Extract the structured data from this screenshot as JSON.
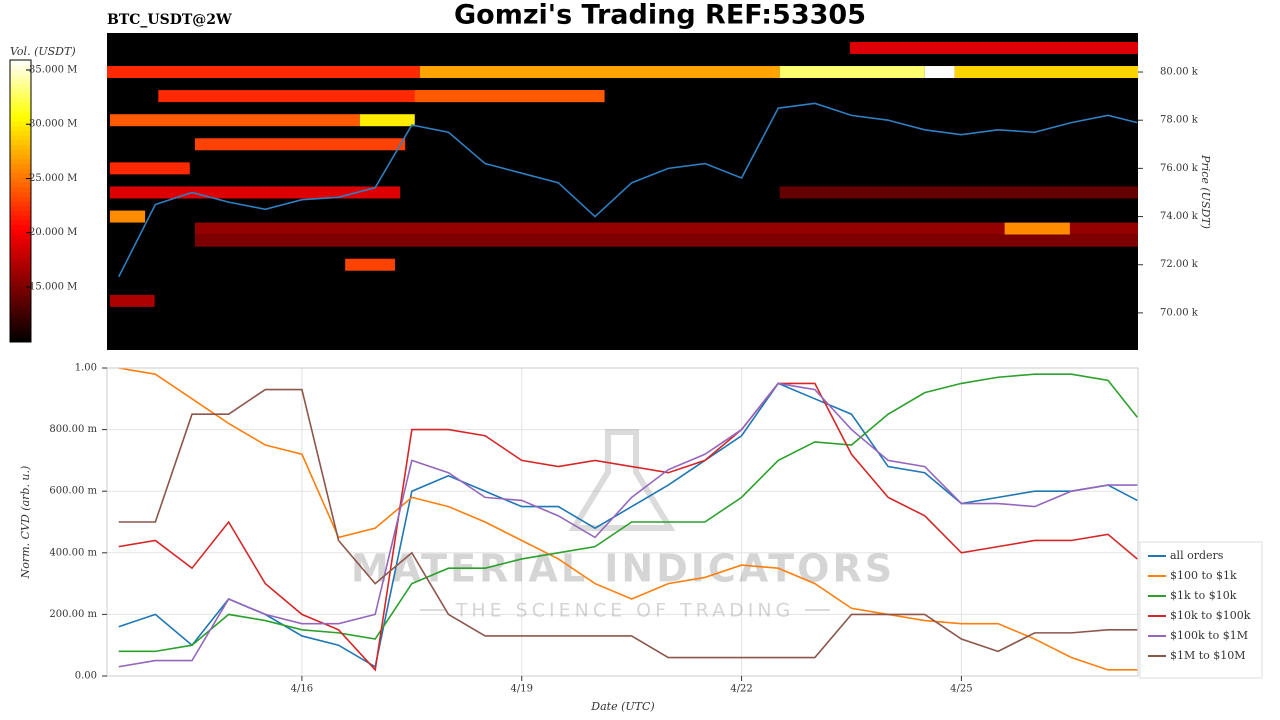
{
  "title": "Gomzi's Trading REF:53305",
  "watermark": {
    "name": "MATERIAL INDICATORS",
    "tagline": "THE SCIENCE OF TRADING"
  },
  "chart_data": [
    {
      "type": "heatmap",
      "label": "BTC_USDT@2W",
      "ylabel": "Price (USDT)",
      "xlim": [
        13.34,
        27.41
      ],
      "ylim": [
        68460,
        81620
      ],
      "yticks": [
        {
          "value": 70000,
          "label": "70.00 k"
        },
        {
          "value": 72000,
          "label": "72.00 k"
        },
        {
          "value": 74000,
          "label": "74.00 k"
        },
        {
          "value": 76000,
          "label": "76.00 k"
        },
        {
          "value": 78000,
          "label": "78.00 k"
        },
        {
          "value": 80000,
          "label": "80.00 k"
        }
      ],
      "clabel": "Vol. (USDT)",
      "clim": [
        9930000,
        35920000
      ],
      "cticks": [
        {
          "value": 15000000,
          "label": "15.000 M"
        },
        {
          "value": 20000000,
          "label": "20.000 M"
        },
        {
          "value": 25000000,
          "label": "25.000 M"
        },
        {
          "value": 30000000,
          "label": "30.000 M"
        },
        {
          "value": 35000000,
          "label": "35.000 M"
        }
      ],
      "blocks": [
        {
          "x": [
            13.34,
            17.61
          ],
          "price": 80000,
          "volume": 22000000
        },
        {
          "x": [
            17.61,
            22.52
          ],
          "price": 80000,
          "volume": 27000000
        },
        {
          "x": [
            22.52,
            24.5
          ],
          "price": 80000,
          "volume": 33000000
        },
        {
          "x": [
            24.5,
            24.91
          ],
          "price": 80000,
          "volume": 35900000
        },
        {
          "x": [
            24.91,
            27.41
          ],
          "price": 80000,
          "volume": 29000000
        },
        {
          "x": [
            23.48,
            27.41
          ],
          "price": 81000,
          "volume": 19000000
        },
        {
          "x": [
            14.04,
            20.13
          ],
          "price": 79000,
          "volume": 22000000
        },
        {
          "x": [
            17.54,
            20.13
          ],
          "price": 79000,
          "volume": 24000000
        },
        {
          "x": [
            13.38,
            16.79
          ],
          "price": 78000,
          "volume": 24000000
        },
        {
          "x": [
            16.79,
            17.54
          ],
          "price": 78000,
          "volume": 30000000
        },
        {
          "x": [
            14.54,
            17.41
          ],
          "price": 77000,
          "volume": 23000000
        },
        {
          "x": [
            13.38,
            14.47
          ],
          "price": 76000,
          "volume": 22000000
        },
        {
          "x": [
            13.38,
            17.34
          ],
          "price": 75000,
          "volume": 19000000
        },
        {
          "x": [
            22.52,
            27.41
          ],
          "price": 75000,
          "volume": 14000000
        },
        {
          "x": [
            13.38,
            13.86
          ],
          "price": 74000,
          "volume": 26000000
        },
        {
          "x": [
            14.54,
            27.41
          ],
          "price": 73500,
          "volume": 16000000
        },
        {
          "x": [
            25.59,
            26.48
          ],
          "price": 73500,
          "volume": 26000000
        },
        {
          "x": [
            14.54,
            27.41
          ],
          "price": 73000,
          "volume": 15000000
        },
        {
          "x": [
            16.59,
            17.27
          ],
          "price": 72000,
          "volume": 23000000
        },
        {
          "x": [
            13.38,
            13.99
          ],
          "price": 70500,
          "volume": 17000000
        }
      ],
      "x": [
        13.5,
        14,
        14.5,
        15,
        15.5,
        16,
        16.5,
        17,
        17.5,
        18,
        18.5,
        19,
        19.5,
        20,
        20.5,
        21,
        21.5,
        22,
        22.5,
        23,
        23.5,
        24,
        24.5,
        25,
        25.5,
        26,
        26.5,
        27,
        27.4
      ],
      "series": [
        {
          "color": "#2f7fc1",
          "values": [
            71500,
            74500,
            75000,
            74600,
            74300,
            74700,
            74800,
            75200,
            77800,
            77500,
            76200,
            75800,
            75400,
            74000,
            75400,
            76000,
            76200,
            75600,
            78500,
            78700,
            78200,
            78000,
            77600,
            77400,
            77600,
            77500,
            77900,
            78200,
            77900
          ]
        }
      ]
    },
    {
      "type": "line",
      "xlabel": "Date (UTC)",
      "ylabel": "Norm. CVD (arb. u.)",
      "xlim": [
        13.34,
        27.41
      ],
      "ylim": [
        0,
        1
      ],
      "xticks": [
        {
          "value": 16,
          "label": "4/16"
        },
        {
          "value": 19,
          "label": "4/19"
        },
        {
          "value": 22,
          "label": "4/22"
        },
        {
          "value": 25,
          "label": "4/25"
        }
      ],
      "yticks": [
        {
          "value": 0,
          "label": "0.00"
        },
        {
          "value": 0.2,
          "label": "200.00 m"
        },
        {
          "value": 0.4,
          "label": "400.00 m"
        },
        {
          "value": 0.6,
          "label": "600.00 m"
        },
        {
          "value": 0.8,
          "label": "800.00 m"
        },
        {
          "value": 1,
          "label": "1.00"
        }
      ],
      "grid": true,
      "legend": "lower right",
      "x": [
        13.5,
        14,
        14.5,
        15,
        15.5,
        16,
        16.5,
        17,
        17.5,
        18,
        18.5,
        19,
        19.5,
        20,
        20.5,
        21,
        21.5,
        22,
        22.5,
        23,
        23.5,
        24,
        24.5,
        25,
        25.5,
        26,
        26.5,
        27,
        27.4
      ],
      "series": [
        {
          "name": "all orders",
          "color": "#1f77b4",
          "values": [
            0.16,
            0.2,
            0.1,
            0.25,
            0.2,
            0.13,
            0.1,
            0.03,
            0.6,
            0.65,
            0.6,
            0.55,
            0.55,
            0.48,
            0.55,
            0.62,
            0.7,
            0.78,
            0.95,
            0.9,
            0.85,
            0.68,
            0.66,
            0.56,
            0.58,
            0.6,
            0.6,
            0.62,
            0.57
          ]
        },
        {
          "name": "$100 to $1k",
          "color": "#ff7f0e",
          "values": [
            1.0,
            0.98,
            0.9,
            0.82,
            0.75,
            0.72,
            0.45,
            0.48,
            0.58,
            0.55,
            0.5,
            0.44,
            0.38,
            0.3,
            0.25,
            0.3,
            0.32,
            0.36,
            0.35,
            0.3,
            0.22,
            0.2,
            0.18,
            0.17,
            0.17,
            0.12,
            0.06,
            0.02,
            0.02
          ]
        },
        {
          "name": "$1k to $10k",
          "color": "#2ca02c",
          "values": [
            0.08,
            0.08,
            0.1,
            0.2,
            0.18,
            0.15,
            0.14,
            0.12,
            0.3,
            0.35,
            0.35,
            0.38,
            0.4,
            0.42,
            0.5,
            0.5,
            0.5,
            0.58,
            0.7,
            0.76,
            0.75,
            0.85,
            0.92,
            0.95,
            0.97,
            0.98,
            0.98,
            0.96,
            0.84
          ]
        },
        {
          "name": "$10k to $100k",
          "color": "#d62728",
          "values": [
            0.42,
            0.44,
            0.35,
            0.5,
            0.3,
            0.2,
            0.15,
            0.02,
            0.8,
            0.8,
            0.78,
            0.7,
            0.68,
            0.7,
            0.68,
            0.66,
            0.7,
            0.8,
            0.95,
            0.95,
            0.72,
            0.58,
            0.52,
            0.4,
            0.42,
            0.44,
            0.44,
            0.46,
            0.38
          ]
        },
        {
          "name": "$100k to $1M",
          "color": "#9467bd",
          "values": [
            0.03,
            0.05,
            0.05,
            0.25,
            0.2,
            0.17,
            0.17,
            0.2,
            0.7,
            0.66,
            0.58,
            0.57,
            0.52,
            0.45,
            0.58,
            0.67,
            0.72,
            0.8,
            0.95,
            0.93,
            0.8,
            0.7,
            0.68,
            0.56,
            0.56,
            0.55,
            0.6,
            0.62,
            0.62
          ]
        },
        {
          "name": "$1M to $10M",
          "color": "#8c564b",
          "values": [
            0.5,
            0.5,
            0.85,
            0.85,
            0.93,
            0.93,
            0.44,
            0.3,
            0.4,
            0.2,
            0.13,
            0.13,
            0.13,
            0.13,
            0.13,
            0.06,
            0.06,
            0.06,
            0.06,
            0.06,
            0.2,
            0.2,
            0.2,
            0.12,
            0.08,
            0.14,
            0.14,
            0.15,
            0.15
          ]
        }
      ]
    }
  ]
}
